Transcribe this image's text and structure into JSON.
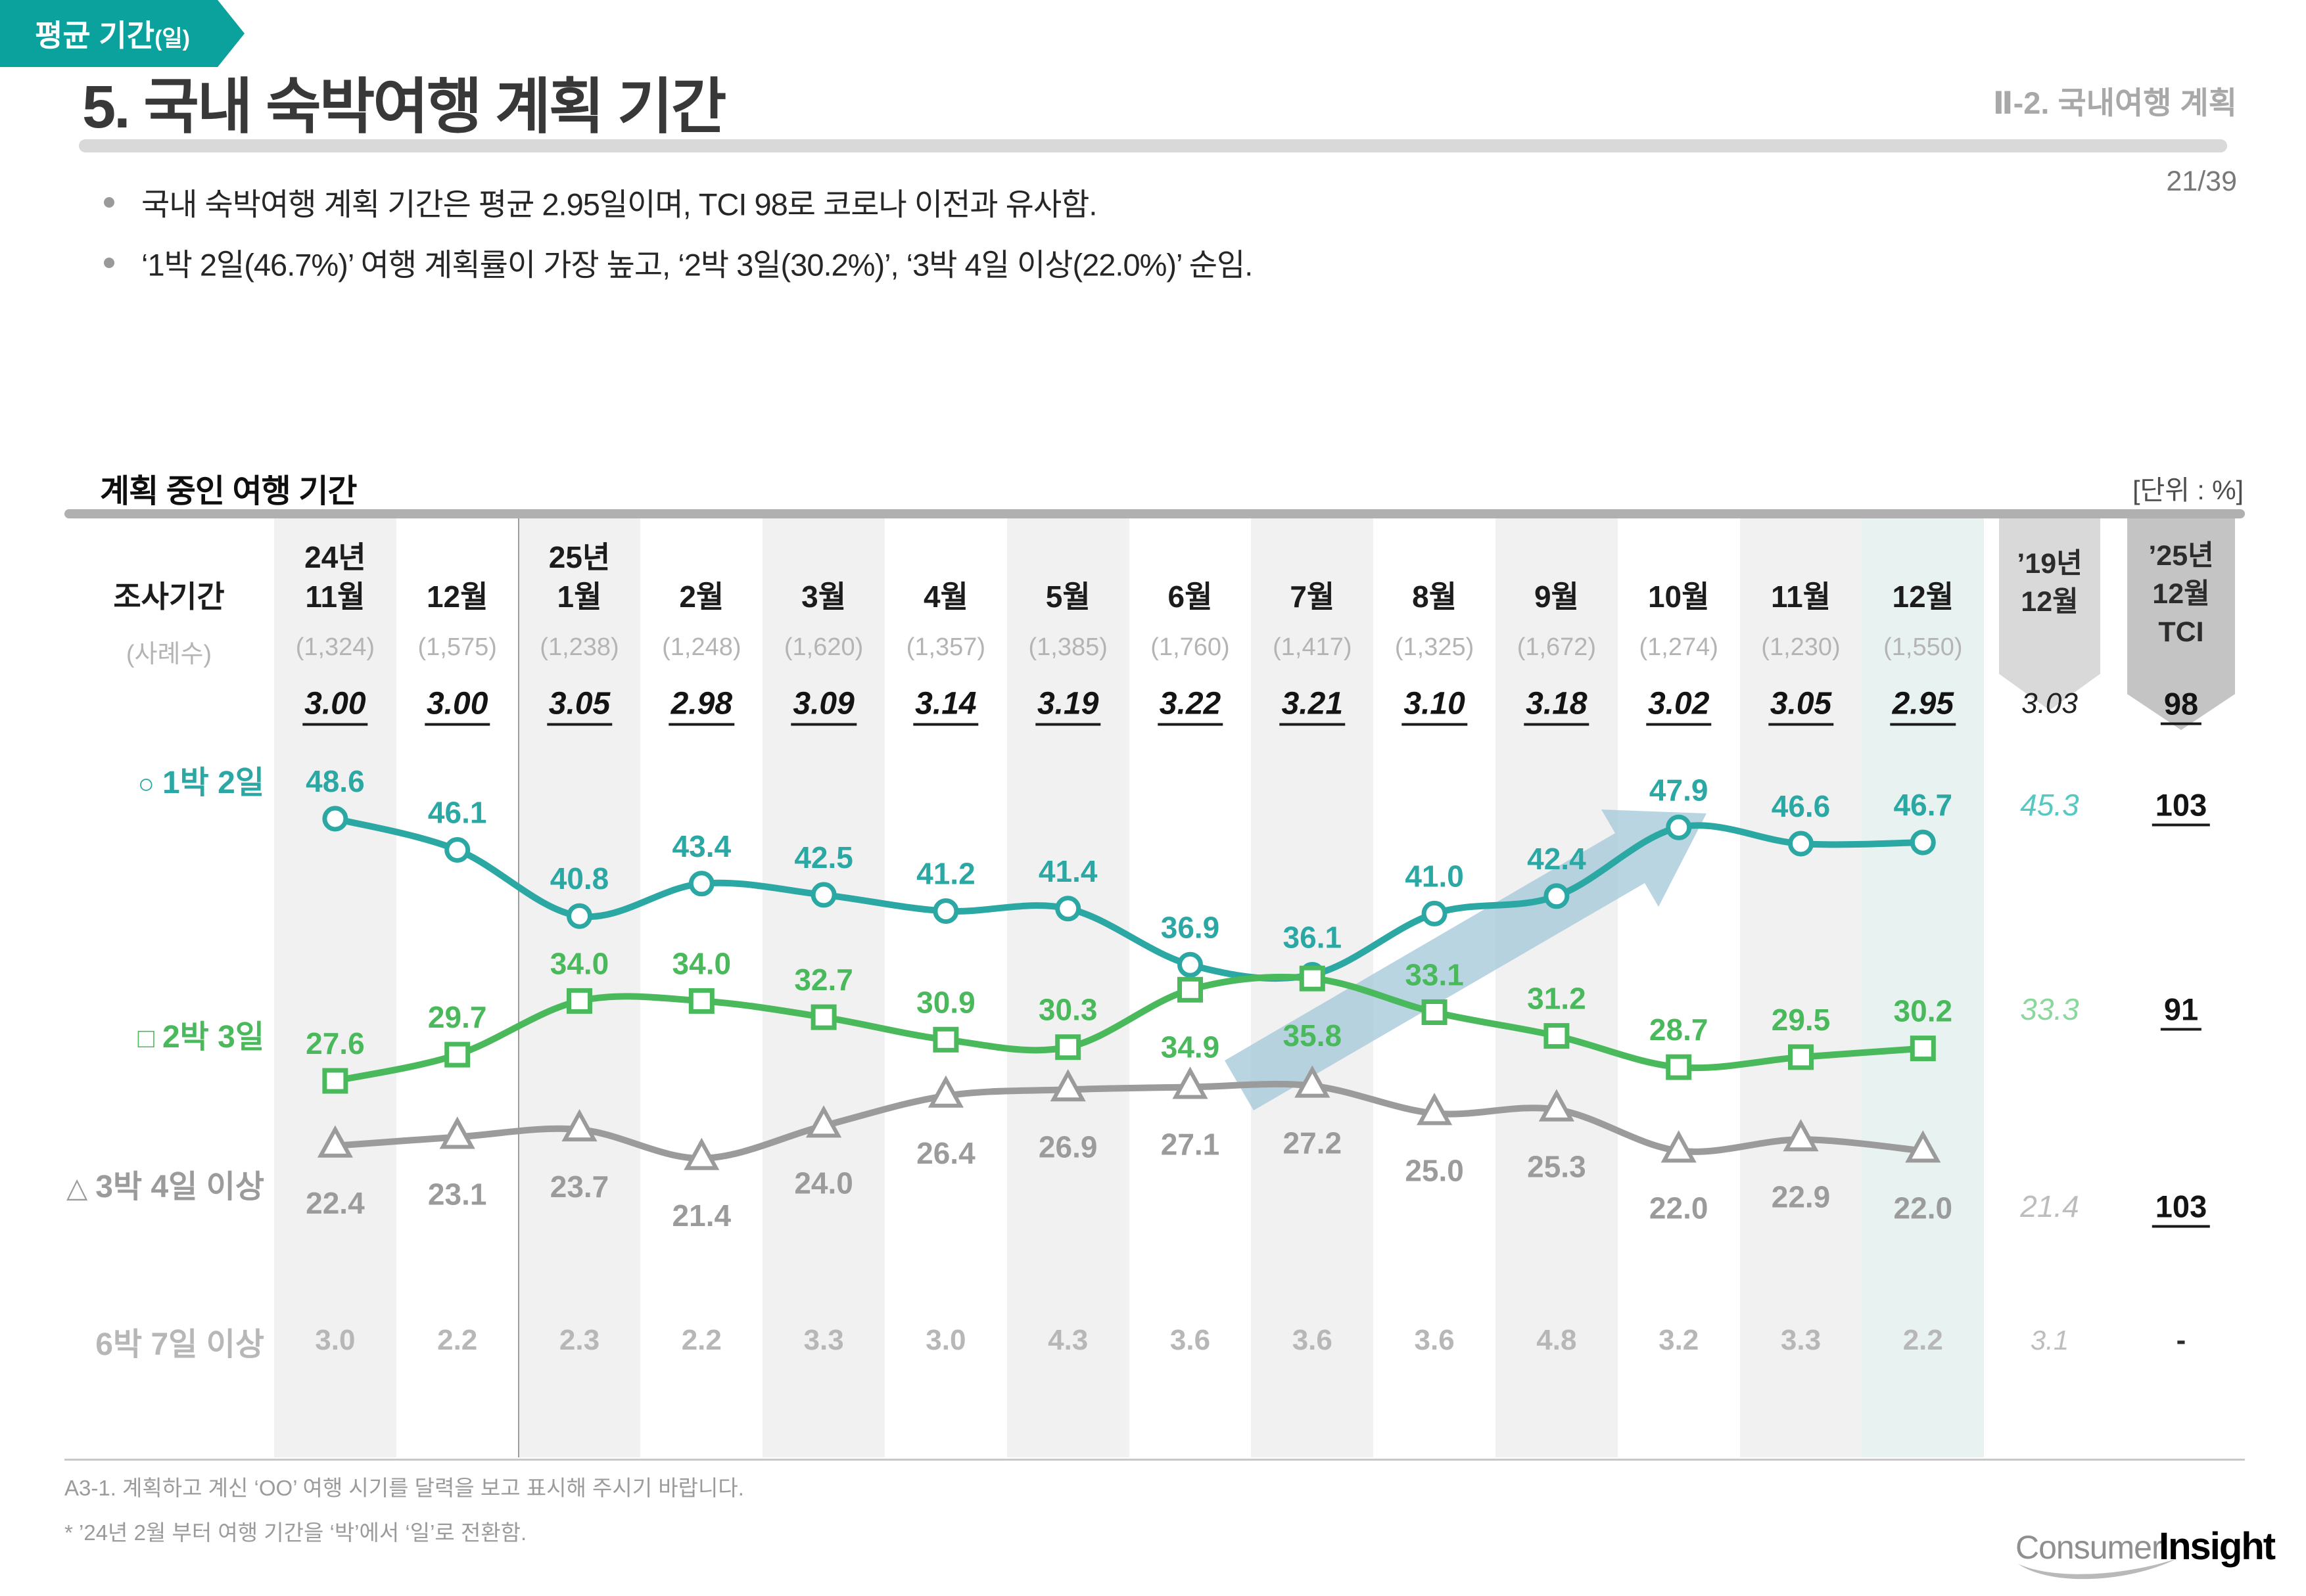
{
  "header": {
    "title": "5. 국내 숙박여행 계획 기간",
    "breadcrumb": "Ⅱ-2. 국내여행 계획",
    "page": "21/39"
  },
  "bullets": [
    "국내 숙박여행 계획 기간은 평균 2.95일이며, TCI 98로 코로나 이전과 유사함.",
    "‘1박 2일(46.7%)’ 여행 계획률이 가장 높고, ‘2박 3일(30.2%)’, ‘3박 4일 이상(22.0%)’ 순임."
  ],
  "section": {
    "title": "계획 중인 여행 기간",
    "unit": "[단위 : %]"
  },
  "table": {
    "period_label": "조사기간",
    "sample_label": "(사례수)",
    "months": [
      [
        "24년",
        "11월"
      ],
      [
        "12월"
      ],
      [
        "25년",
        "1월"
      ],
      [
        "2월"
      ],
      [
        "3월"
      ],
      [
        "4월"
      ],
      [
        "5월"
      ],
      [
        "6월"
      ],
      [
        "7월"
      ],
      [
        "8월"
      ],
      [
        "9월"
      ],
      [
        "10월"
      ],
      [
        "11월"
      ],
      [
        "12월"
      ]
    ],
    "samples": [
      "(1,324)",
      "(1,575)",
      "(1,238)",
      "(1,248)",
      "(1,620)",
      "(1,357)",
      "(1,385)",
      "(1,760)",
      "(1,417)",
      "(1,325)",
      "(1,672)",
      "(1,274)",
      "(1,230)",
      "(1,550)"
    ],
    "avg_label": "평균 기간",
    "avg_label_suffix": "(일)",
    "avg_values": [
      "3.00",
      "3.00",
      "3.05",
      "2.98",
      "3.09",
      "3.14",
      "3.19",
      "3.22",
      "3.21",
      "3.10",
      "3.18",
      "3.02",
      "3.05",
      "2.95"
    ],
    "avg_ref": "3.03",
    "avg_tci": "98",
    "ref_col_lines": [
      "’19년",
      "12월"
    ],
    "tci_col_lines": [
      "’25년",
      "12월",
      "TCI"
    ]
  },
  "chart_data": {
    "type": "line",
    "unit": "%",
    "title": "계획 중인 여행 기간",
    "categories": [
      "24년 11월",
      "12월",
      "25년 1월",
      "2월",
      "3월",
      "4월",
      "5월",
      "6월",
      "7월",
      "8월",
      "9월",
      "10월",
      "11월",
      "12월"
    ],
    "series": [
      {
        "name": "1박 2일",
        "marker": "circle",
        "values": [
          48.6,
          46.1,
          40.8,
          43.4,
          42.5,
          41.2,
          41.4,
          36.9,
          36.1,
          41.0,
          42.4,
          47.9,
          46.6,
          46.7
        ],
        "ref_19_12": "45.3",
        "tci_25_12": "103"
      },
      {
        "name": "2박 3일",
        "marker": "square",
        "values": [
          27.6,
          29.7,
          34.0,
          34.0,
          32.7,
          30.9,
          30.3,
          34.9,
          35.8,
          33.1,
          31.2,
          28.7,
          29.5,
          30.2
        ],
        "ref_19_12": "33.3",
        "tci_25_12": "91"
      },
      {
        "name": "3박 4일 이상",
        "marker": "triangle",
        "values": [
          22.4,
          23.1,
          23.7,
          21.4,
          24.0,
          26.4,
          26.9,
          27.1,
          27.2,
          25.0,
          25.3,
          22.0,
          22.9,
          22.0
        ],
        "ref_19_12": "21.4",
        "tci_25_12": "103"
      }
    ],
    "extra_row": {
      "name": "6박 7일 이상",
      "values": [
        "3.0",
        "2.2",
        "2.3",
        "2.2",
        "3.3",
        "3.0",
        "4.3",
        "3.6",
        "3.6",
        "3.6",
        "4.8",
        "3.2",
        "3.3",
        "2.2"
      ],
      "ref_19_12": "3.1",
      "tci_25_12": "-"
    },
    "ref_column_label": "’19년 12월",
    "tci_column_label": "’25년 12월 TCI",
    "avg_row_label": "평균 기간(일)",
    "trend_arrow": "7월→10월 상승",
    "legend_position": "left",
    "grid": false
  },
  "footer": {
    "note1": "A3-1. 계획하고 계신 ‘OO’ 여행 시기를 달력을 보고 표시해 주시기 바랍니다.",
    "note2": "* ’24년 2월 부터 여행 기간을 ‘박’에서 ‘일’로 전환함.",
    "logo_consumer": "Consumer",
    "logo_insight": "Insight"
  },
  "colors": {
    "teal": "#2BA8A3",
    "green": "#49B95B",
    "gray": "#9B9B9B",
    "teal_light": "#55C8C1",
    "green_light": "#8CD79D",
    "gray_light": "#BDBDBD",
    "extra_gray": "#B7B7B7",
    "avg_arrow_bg": "#0BA29E",
    "trend_arrow_fill": "#A9CBDB",
    "stripe": "#F1F1F1",
    "stripe_highlight": "#E8F3F1",
    "ribbon_ref": "#D9D9D9",
    "ribbon_tci": "#C4C4C4",
    "logo_red": "#D4302E"
  }
}
